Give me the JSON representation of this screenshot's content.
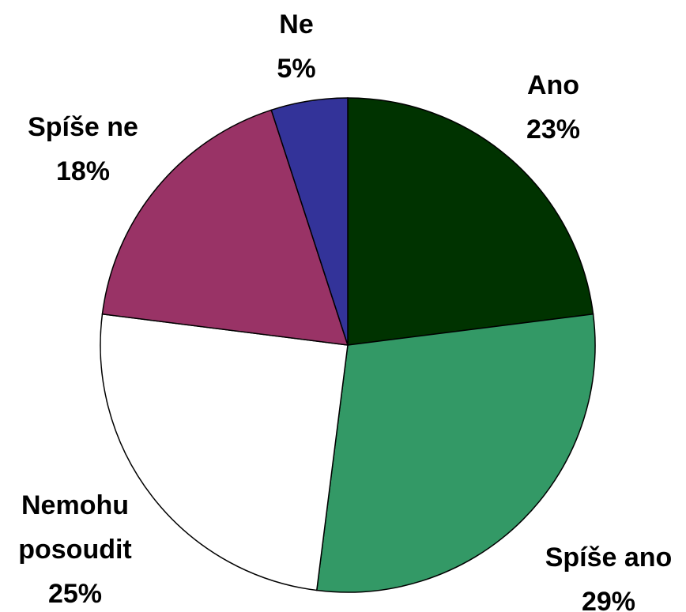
{
  "chart_data": {
    "type": "pie",
    "categories": [
      "Ano",
      "Spíše ano",
      "Nemohu posoudit",
      "Spíše ne",
      "Ne"
    ],
    "values": [
      23,
      29,
      25,
      18,
      5
    ],
    "value_labels": [
      "23%",
      "29%",
      "25%",
      "18%",
      "5%"
    ],
    "colors": [
      "#003300",
      "#339966",
      "#ffffff",
      "#993366",
      "#333399"
    ]
  }
}
